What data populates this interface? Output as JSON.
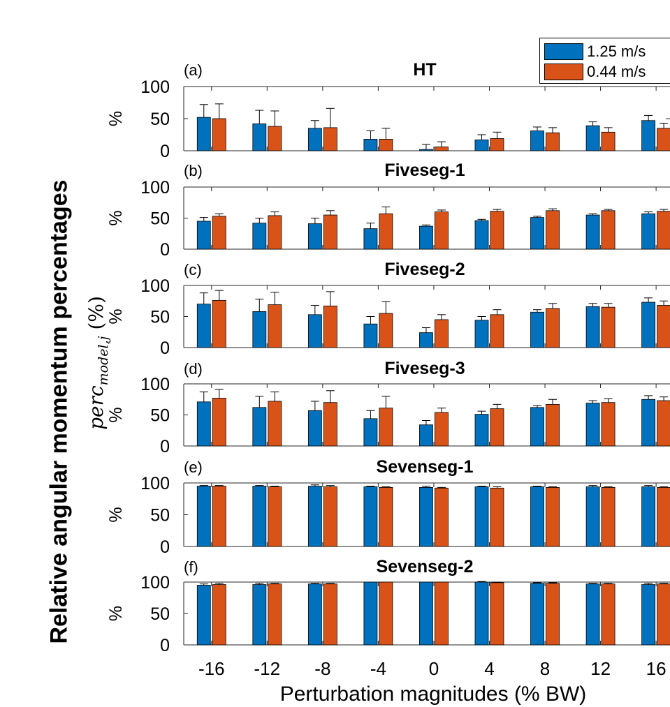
{
  "colors": {
    "series1": "#0072BD",
    "series2": "#D95319",
    "axis": "#262626"
  },
  "figure": {
    "ylabel_main": "Relative angular momentum percentages",
    "ylabel_sub": {
      "base": "perc",
      "subscript": "model,j",
      "unit": " (%)"
    },
    "xlabel": "Perturbation magnitudes (% BW)"
  },
  "legend": {
    "items": [
      "1.25 m/s",
      "0.44 m/s"
    ]
  },
  "chart_data": [
    {
      "type": "bar",
      "panel": "(a)",
      "title": "HT",
      "ylabel": "%",
      "ylim": [
        0,
        100
      ],
      "yticks": [
        0,
        50,
        100
      ],
      "categories": [
        "-16",
        "-12",
        "-8",
        "-4",
        "0",
        "4",
        "8",
        "12",
        "16"
      ],
      "series": [
        {
          "name": "1.25 m/s",
          "values": [
            52,
            42,
            35,
            18,
            2,
            17,
            31,
            39,
            47
          ],
          "errors": [
            20,
            21,
            12,
            13,
            8,
            8,
            6,
            6,
            8
          ]
        },
        {
          "name": "0.44 m/s",
          "values": [
            50,
            38,
            36,
            18,
            6,
            19,
            28,
            29,
            35
          ],
          "errors": [
            23,
            24,
            30,
            17,
            8,
            10,
            8,
            7,
            8
          ]
        }
      ]
    },
    {
      "type": "bar",
      "panel": "(b)",
      "title": "Fiveseg-1",
      "ylabel": "%",
      "ylim": [
        0,
        100
      ],
      "yticks": [
        0,
        50,
        100
      ],
      "categories": [
        "-16",
        "-12",
        "-8",
        "-4",
        "0",
        "4",
        "8",
        "12",
        "16"
      ],
      "series": [
        {
          "name": "1.25 m/s",
          "values": [
            45,
            42,
            41,
            33,
            37,
            46,
            51,
            55,
            57
          ],
          "errors": [
            6,
            8,
            9,
            9,
            2,
            2,
            2,
            2,
            3
          ]
        },
        {
          "name": "0.44 m/s",
          "values": [
            53,
            54,
            55,
            57,
            60,
            61,
            62,
            62,
            61
          ],
          "errors": [
            4,
            6,
            7,
            11,
            3,
            3,
            3,
            2,
            3
          ]
        }
      ]
    },
    {
      "type": "bar",
      "panel": "(c)",
      "title": "Fiveseg-2",
      "ylabel": "%",
      "ylim": [
        0,
        100
      ],
      "yticks": [
        0,
        50,
        100
      ],
      "categories": [
        "-16",
        "-12",
        "-8",
        "-4",
        "0",
        "4",
        "8",
        "12",
        "16"
      ],
      "series": [
        {
          "name": "1.25 m/s",
          "values": [
            70,
            58,
            53,
            38,
            24,
            44,
            57,
            66,
            73
          ],
          "errors": [
            18,
            20,
            15,
            12,
            8,
            6,
            4,
            5,
            7
          ]
        },
        {
          "name": "0.44 m/s",
          "values": [
            76,
            69,
            67,
            55,
            45,
            53,
            63,
            65,
            68
          ],
          "errors": [
            16,
            20,
            23,
            19,
            8,
            8,
            8,
            6,
            7
          ]
        }
      ]
    },
    {
      "type": "bar",
      "panel": "(d)",
      "title": "Fiveseg-3",
      "ylabel": "%",
      "ylim": [
        0,
        100
      ],
      "yticks": [
        0,
        50,
        100
      ],
      "categories": [
        "-16",
        "-12",
        "-8",
        "-4",
        "0",
        "4",
        "8",
        "12",
        "16"
      ],
      "series": [
        {
          "name": "1.25 m/s",
          "values": [
            71,
            62,
            57,
            44,
            34,
            51,
            62,
            69,
            75
          ],
          "errors": [
            16,
            18,
            15,
            13,
            7,
            5,
            3,
            4,
            6
          ]
        },
        {
          "name": "0.44 m/s",
          "values": [
            77,
            72,
            70,
            61,
            54,
            60,
            67,
            70,
            73
          ],
          "errors": [
            14,
            15,
            19,
            19,
            7,
            7,
            8,
            6,
            6
          ]
        }
      ]
    },
    {
      "type": "bar",
      "panel": "(e)",
      "title": "Sevenseg-1",
      "ylabel": "%",
      "ylim": [
        0,
        100
      ],
      "yticks": [
        0,
        50,
        100
      ],
      "categories": [
        "-16",
        "-12",
        "-8",
        "-4",
        "0",
        "4",
        "8",
        "12",
        "16"
      ],
      "series": [
        {
          "name": "1.25 m/s",
          "values": [
            95,
            95,
            95,
            94,
            93,
            94,
            94,
            94,
            94
          ],
          "errors": [
            1,
            1,
            2,
            1,
            2,
            1,
            1,
            2,
            2
          ]
        },
        {
          "name": "0.44 m/s",
          "values": [
            95,
            94,
            94,
            93,
            92,
            92,
            93,
            93,
            93
          ],
          "errors": [
            1,
            1,
            2,
            1,
            1,
            2,
            1,
            1,
            1
          ]
        }
      ]
    },
    {
      "type": "bar",
      "panel": "(f)",
      "title": "Sevenseg-2",
      "ylabel": "%",
      "ylim": [
        0,
        100
      ],
      "yticks": [
        0,
        50,
        100
      ],
      "categories": [
        "-16",
        "-12",
        "-8",
        "-4",
        "0",
        "4",
        "8",
        "12",
        "16"
      ],
      "series": [
        {
          "name": "1.25 m/s",
          "values": [
            95,
            96,
            97,
            100,
            100,
            100,
            98,
            97,
            96
          ],
          "errors": [
            2,
            2,
            1,
            0,
            0,
            1,
            1,
            1,
            2
          ]
        },
        {
          "name": "0.44 m/s",
          "values": [
            96,
            97,
            97,
            100,
            100,
            99,
            98,
            97,
            97
          ],
          "errors": [
            2,
            1,
            1,
            0,
            0,
            1,
            1,
            1,
            1
          ]
        }
      ]
    }
  ]
}
